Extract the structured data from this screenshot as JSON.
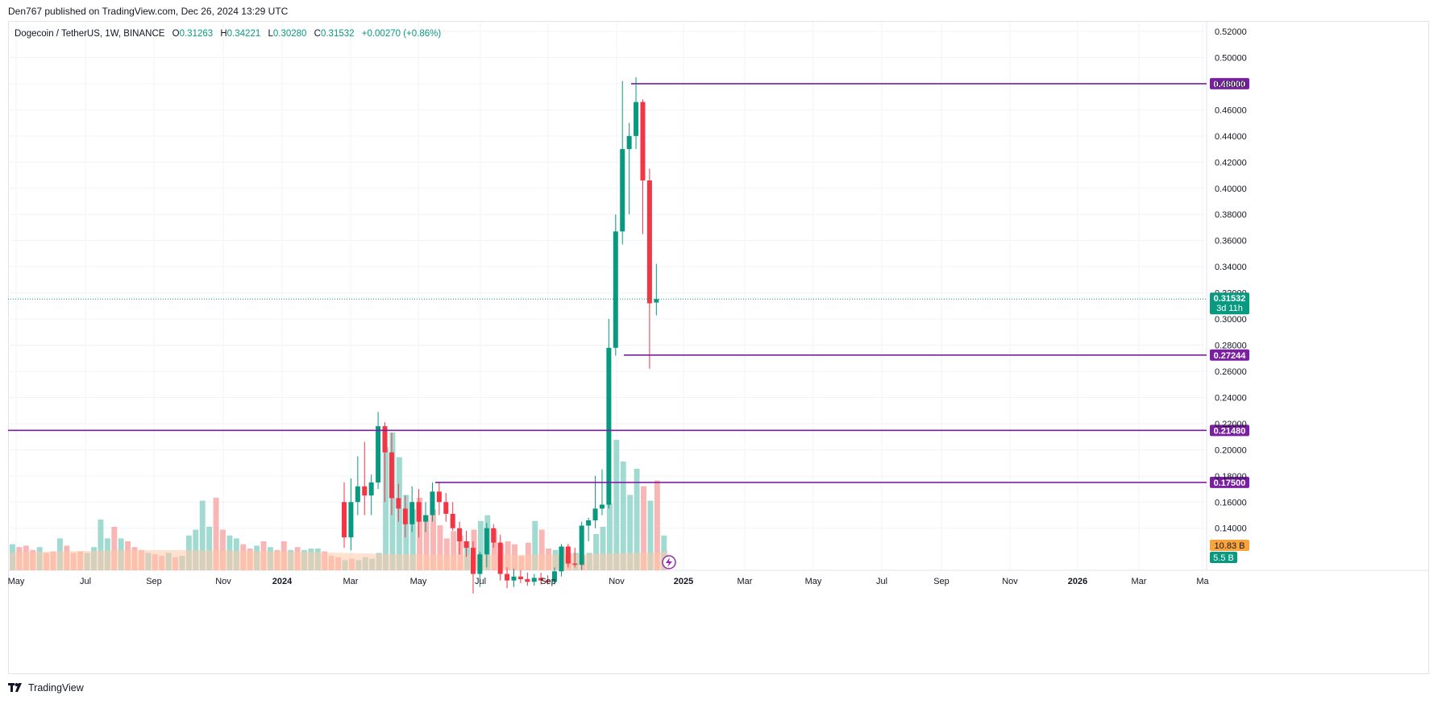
{
  "header": {
    "published": "Den767 published on TradingView.com, Dec 26, 2024 13:29 UTC"
  },
  "legend": {
    "symbol": "Dogecoin / TetherUS, 1W, BINANCE",
    "open_label": "O",
    "open": "0.31263",
    "high_label": "H",
    "high": "0.34221",
    "low_label": "L",
    "low": "0.30280",
    "close_label": "C",
    "close": "0.31532",
    "change": "+0.00270 (+0.86%)"
  },
  "footer": {
    "brand": "TradingView",
    "logo_icon": "tradingview-logo-icon"
  },
  "colors": {
    "up": "#089981",
    "down": "#f23645",
    "line": "#7b1fa2",
    "vol_up": "#8fd3c9",
    "vol_down": "#f7a9a7",
    "vol_ma": "#ffc9a9"
  },
  "chart_data": {
    "type": "candlestick",
    "ylim": [
      0.12,
      0.53
    ],
    "y_ticks": [
      "0.52000",
      "0.50000",
      "0.48000",
      "0.46000",
      "0.44000",
      "0.42000",
      "0.40000",
      "0.38000",
      "0.36000",
      "0.34000",
      "0.32000",
      "0.30000",
      "0.28000",
      "0.26000",
      "0.24000",
      "0.22000",
      "0.20000",
      "0.18000",
      "0.16000",
      "0.14000"
    ],
    "x_ticks": [
      "May",
      "Jul",
      "Sep",
      "Nov",
      "2024",
      "Mar",
      "May",
      "Jul",
      "Sep",
      "Nov",
      "2025",
      "Mar",
      "May",
      "Jul",
      "Sep",
      "Nov",
      "2026",
      "Mar",
      "Ma"
    ],
    "candles": [
      {
        "o": 0.16,
        "h": 0.175,
        "l": 0.125,
        "c": 0.133
      },
      {
        "o": 0.133,
        "h": 0.178,
        "l": 0.123,
        "c": 0.16
      },
      {
        "o": 0.16,
        "h": 0.195,
        "l": 0.15,
        "c": 0.172
      },
      {
        "o": 0.172,
        "h": 0.206,
        "l": 0.15,
        "c": 0.165
      },
      {
        "o": 0.165,
        "h": 0.181,
        "l": 0.15,
        "c": 0.175
      },
      {
        "o": 0.175,
        "h": 0.229,
        "l": 0.17,
        "c": 0.218
      },
      {
        "o": 0.218,
        "h": 0.221,
        "l": 0.16,
        "c": 0.198
      },
      {
        "o": 0.198,
        "h": 0.213,
        "l": 0.15,
        "c": 0.163
      },
      {
        "o": 0.163,
        "h": 0.174,
        "l": 0.145,
        "c": 0.155
      },
      {
        "o": 0.155,
        "h": 0.165,
        "l": 0.133,
        "c": 0.143
      },
      {
        "o": 0.143,
        "h": 0.172,
        "l": 0.137,
        "c": 0.16
      },
      {
        "o": 0.16,
        "h": 0.17,
        "l": 0.133,
        "c": 0.145
      },
      {
        "o": 0.145,
        "h": 0.16,
        "l": 0.137,
        "c": 0.15
      },
      {
        "o": 0.15,
        "h": 0.175,
        "l": 0.145,
        "c": 0.168
      },
      {
        "o": 0.168,
        "h": 0.175,
        "l": 0.15,
        "c": 0.16
      },
      {
        "o": 0.16,
        "h": 0.167,
        "l": 0.145,
        "c": 0.151
      },
      {
        "o": 0.151,
        "h": 0.16,
        "l": 0.138,
        "c": 0.14
      },
      {
        "o": 0.14,
        "h": 0.145,
        "l": 0.12,
        "c": 0.13
      },
      {
        "o": 0.13,
        "h": 0.138,
        "l": 0.118,
        "c": 0.125
      },
      {
        "o": 0.125,
        "h": 0.13,
        "l": 0.09,
        "c": 0.105
      },
      {
        "o": 0.105,
        "h": 0.122,
        "l": 0.095,
        "c": 0.12
      },
      {
        "o": 0.12,
        "h": 0.144,
        "l": 0.11,
        "c": 0.14
      },
      {
        "o": 0.14,
        "h": 0.143,
        "l": 0.125,
        "c": 0.129
      },
      {
        "o": 0.129,
        "h": 0.135,
        "l": 0.1,
        "c": 0.105
      },
      {
        "o": 0.105,
        "h": 0.11,
        "l": 0.094,
        "c": 0.1
      },
      {
        "o": 0.1,
        "h": 0.109,
        "l": 0.095,
        "c": 0.103
      },
      {
        "o": 0.103,
        "h": 0.108,
        "l": 0.098,
        "c": 0.101
      },
      {
        "o": 0.101,
        "h": 0.106,
        "l": 0.096,
        "c": 0.099
      },
      {
        "o": 0.099,
        "h": 0.105,
        "l": 0.096,
        "c": 0.102
      },
      {
        "o": 0.102,
        "h": 0.106,
        "l": 0.097,
        "c": 0.1
      },
      {
        "o": 0.1,
        "h": 0.104,
        "l": 0.097,
        "c": 0.099
      },
      {
        "o": 0.099,
        "h": 0.11,
        "l": 0.097,
        "c": 0.107
      },
      {
        "o": 0.107,
        "h": 0.128,
        "l": 0.103,
        "c": 0.126
      },
      {
        "o": 0.126,
        "h": 0.128,
        "l": 0.11,
        "c": 0.113
      },
      {
        "o": 0.113,
        "h": 0.125,
        "l": 0.11,
        "c": 0.112
      },
      {
        "o": 0.112,
        "h": 0.145,
        "l": 0.108,
        "c": 0.142
      },
      {
        "o": 0.142,
        "h": 0.148,
        "l": 0.13,
        "c": 0.146
      },
      {
        "o": 0.146,
        "h": 0.18,
        "l": 0.14,
        "c": 0.155
      },
      {
        "o": 0.155,
        "h": 0.185,
        "l": 0.15,
        "c": 0.158
      },
      {
        "o": 0.158,
        "h": 0.3,
        "l": 0.155,
        "c": 0.278
      },
      {
        "o": 0.278,
        "h": 0.38,
        "l": 0.272,
        "c": 0.367
      },
      {
        "o": 0.367,
        "h": 0.482,
        "l": 0.357,
        "c": 0.43
      },
      {
        "o": 0.43,
        "h": 0.45,
        "l": 0.38,
        "c": 0.44
      },
      {
        "o": 0.44,
        "h": 0.485,
        "l": 0.43,
        "c": 0.466
      },
      {
        "o": 0.466,
        "h": 0.468,
        "l": 0.365,
        "c": 0.406
      },
      {
        "o": 0.406,
        "h": 0.415,
        "l": 0.262,
        "c": 0.312
      },
      {
        "o": 0.3126,
        "h": 0.3422,
        "l": 0.3028,
        "c": 0.3153
      }
    ],
    "volume_note_first_candle_date": "2023-05",
    "volume": [
      {
        "v": 0.18,
        "up": true
      },
      {
        "v": 0.16,
        "up": false
      },
      {
        "v": 0.17,
        "up": false
      },
      {
        "v": 0.14,
        "up": false
      },
      {
        "v": 0.16,
        "up": true
      },
      {
        "v": 0.12,
        "up": false
      },
      {
        "v": 0.13,
        "up": false
      },
      {
        "v": 0.22,
        "up": true
      },
      {
        "v": 0.17,
        "up": false
      },
      {
        "v": 0.12,
        "up": false
      },
      {
        "v": 0.13,
        "up": false
      },
      {
        "v": 0.12,
        "up": true
      },
      {
        "v": 0.16,
        "up": true
      },
      {
        "v": 0.35,
        "up": true
      },
      {
        "v": 0.22,
        "up": true
      },
      {
        "v": 0.3,
        "up": false
      },
      {
        "v": 0.22,
        "up": true
      },
      {
        "v": 0.2,
        "up": false
      },
      {
        "v": 0.16,
        "up": false
      },
      {
        "v": 0.14,
        "up": false
      },
      {
        "v": 0.12,
        "up": true
      },
      {
        "v": 0.11,
        "up": false
      },
      {
        "v": 0.1,
        "up": false
      },
      {
        "v": 0.12,
        "up": true
      },
      {
        "v": 0.09,
        "up": false
      },
      {
        "v": 0.1,
        "up": true
      },
      {
        "v": 0.24,
        "up": true
      },
      {
        "v": 0.28,
        "up": true
      },
      {
        "v": 0.48,
        "up": true
      },
      {
        "v": 0.3,
        "up": true
      },
      {
        "v": 0.5,
        "up": false
      },
      {
        "v": 0.28,
        "up": false
      },
      {
        "v": 0.24,
        "up": true
      },
      {
        "v": 0.22,
        "up": true
      },
      {
        "v": 0.18,
        "up": false
      },
      {
        "v": 0.15,
        "up": false
      },
      {
        "v": 0.17,
        "up": true
      },
      {
        "v": 0.2,
        "up": false
      },
      {
        "v": 0.16,
        "up": true
      },
      {
        "v": 0.14,
        "up": false
      },
      {
        "v": 0.2,
        "up": false
      },
      {
        "v": 0.14,
        "up": true
      },
      {
        "v": 0.16,
        "up": false
      },
      {
        "v": 0.14,
        "up": true
      },
      {
        "v": 0.15,
        "up": true
      },
      {
        "v": 0.15,
        "up": true
      },
      {
        "v": 0.13,
        "up": false
      },
      {
        "v": 0.1,
        "up": false
      },
      {
        "v": 0.09,
        "up": false
      },
      {
        "v": 0.07,
        "up": true
      },
      {
        "v": 0.08,
        "up": false
      },
      {
        "v": 0.07,
        "up": true
      },
      {
        "v": 0.09,
        "up": true
      },
      {
        "v": 0.08,
        "up": true
      },
      {
        "v": 0.12,
        "up": true
      },
      {
        "v": 0.85,
        "up": true
      },
      {
        "v": 0.95,
        "up": true
      },
      {
        "v": 0.78,
        "up": true
      },
      {
        "v": 0.52,
        "up": true
      },
      {
        "v": 0.42,
        "up": true
      },
      {
        "v": 0.5,
        "up": false
      },
      {
        "v": 0.38,
        "up": false
      },
      {
        "v": 0.42,
        "up": false
      },
      {
        "v": 0.31,
        "up": false
      },
      {
        "v": 0.22,
        "up": false
      },
      {
        "v": 0.27,
        "up": false
      },
      {
        "v": 0.24,
        "up": false
      },
      {
        "v": 0.2,
        "up": true
      },
      {
        "v": 0.28,
        "up": false
      },
      {
        "v": 0.34,
        "up": true
      },
      {
        "v": 0.38,
        "up": true
      },
      {
        "v": 0.28,
        "up": false
      },
      {
        "v": 0.18,
        "up": false
      },
      {
        "v": 0.2,
        "up": false
      },
      {
        "v": 0.18,
        "up": false
      },
      {
        "v": 0.1,
        "up": false
      },
      {
        "v": 0.19,
        "up": false
      },
      {
        "v": 0.34,
        "up": true
      },
      {
        "v": 0.28,
        "up": false
      },
      {
        "v": 0.15,
        "up": false
      },
      {
        "v": 0.14,
        "up": true
      },
      {
        "v": 0.16,
        "up": false
      },
      {
        "v": 0.12,
        "up": false
      },
      {
        "v": 0.12,
        "up": true
      },
      {
        "v": 0.1,
        "up": false
      },
      {
        "v": 0.12,
        "up": true
      },
      {
        "v": 0.25,
        "up": true
      },
      {
        "v": 0.3,
        "up": true
      },
      {
        "v": 0.46,
        "up": true
      },
      {
        "v": 0.9,
        "up": true
      },
      {
        "v": 0.75,
        "up": true
      },
      {
        "v": 0.52,
        "up": true
      },
      {
        "v": 0.7,
        "up": true
      },
      {
        "v": 0.58,
        "up": false
      },
      {
        "v": 0.48,
        "up": true
      },
      {
        "v": 0.62,
        "up": false
      },
      {
        "v": 0.24,
        "up": true
      }
    ],
    "horizontal_lines": [
      {
        "value": 0.48,
        "label": "0.48000"
      },
      {
        "value": 0.27244,
        "label": "0.27244"
      },
      {
        "value": 0.2148,
        "label": "0.21480"
      },
      {
        "value": 0.175,
        "label": "0.17500"
      }
    ],
    "current_price": {
      "value": 0.31532,
      "label": "0.31532",
      "countdown": "3d 11h"
    },
    "volume_labels": {
      "volume_ma": "10.83 B",
      "volume": "5.5 B"
    }
  }
}
